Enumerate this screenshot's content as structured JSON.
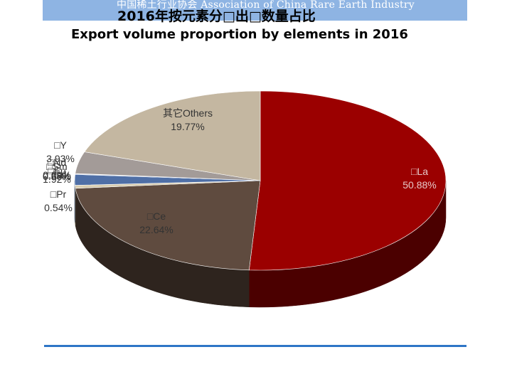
{
  "header": {
    "banner_text": "中国稀土行业协会 Association of China Rare Earth Industry"
  },
  "chart_data": {
    "type": "pie",
    "style": "3d",
    "title": "2016年按元素分□出□数量占比",
    "subtitle": "Export volume proportion by elements in 2016",
    "legend": "none",
    "slices": [
      {
        "name": "□La",
        "value": 50.88,
        "label_value": "50.88%",
        "color": "#9b0000",
        "side_color": "#4b0000"
      },
      {
        "name": "□Ce",
        "value": 22.64,
        "label_value": "22.64%",
        "color": "#5f4b3f",
        "side_color": "#2e241e"
      },
      {
        "name": "□Pr",
        "value": 0.54,
        "label_value": "0.54%",
        "color": "#d9cdb0",
        "side_color": "#8f866f"
      },
      {
        "name": "□Nd",
        "value": 1.92,
        "label_value": "1.92%",
        "color": "#4f6fa6",
        "side_color": "#2c3f60"
      },
      {
        "name": "□Sm",
        "value": 0.09,
        "label_value": "0.09%",
        "color": "#2f5597",
        "side_color": "#1b3157"
      },
      {
        "name": "□Eu",
        "value": 0.0,
        "label_value": "0.00%",
        "color": "#7f9fcf",
        "side_color": "#4b5f7c"
      },
      {
        "name": "□Gd",
        "value": 0.08,
        "label_value": "0.08%",
        "color": "#c0504d",
        "side_color": "#70302e"
      },
      {
        "name": "□Y",
        "value": 3.93,
        "label_value": "3.93%",
        "color": "#a39b98",
        "side_color": "#625c5a"
      },
      {
        "name": "其它Others",
        "value": 19.77,
        "label_value": "19.77%",
        "color": "#c4b7a1",
        "side_color": "#7d7466"
      }
    ]
  }
}
